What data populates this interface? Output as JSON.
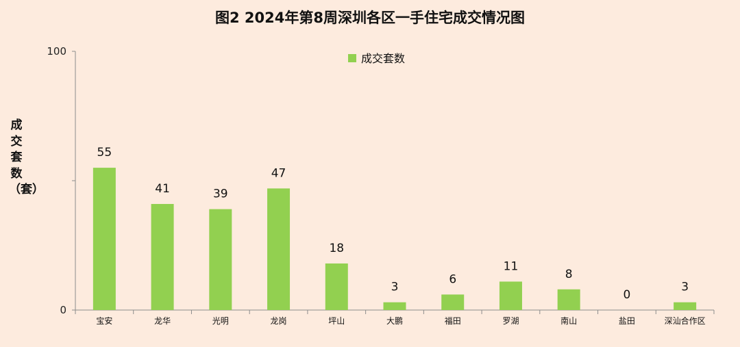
{
  "chart_data": {
    "type": "bar",
    "title": "图2  2024年第8周深圳各区一手住宅成交情况图",
    "ylabel": "成交套数（套）",
    "xlabel": "",
    "categories": [
      "宝安",
      "龙华",
      "光明",
      "龙岗",
      "坪山",
      "大鹏",
      "福田",
      "罗湖",
      "南山",
      "盐田",
      "深汕合作区"
    ],
    "series": [
      {
        "name": "成交套数",
        "values": [
          55,
          41,
          39,
          47,
          18,
          3,
          6,
          11,
          8,
          0,
          3
        ],
        "color": "#92d050"
      }
    ],
    "ylim": [
      0,
      100
    ],
    "yticks": [
      {
        "value": 0,
        "label": "0"
      },
      {
        "value": 50,
        "label": ""
      },
      {
        "value": 100,
        "label": "100"
      }
    ],
    "grid": false,
    "legend": "top-center"
  }
}
